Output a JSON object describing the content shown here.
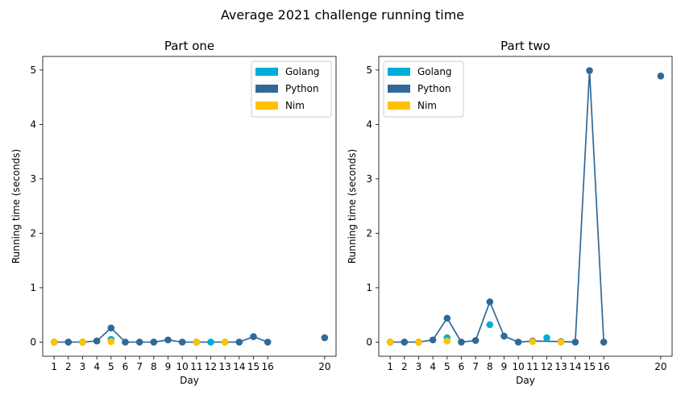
{
  "figure_title": "Average 2021 challenge running time",
  "legend_items": [
    "Golang",
    "Python",
    "Nim"
  ],
  "colors": {
    "Golang": "#00add8",
    "Python": "#306998",
    "Nim": "#ffc200",
    "line": "#306998"
  },
  "chart_data": [
    {
      "type": "line",
      "title": "Part one",
      "xlabel": "Day",
      "ylabel": "Running time (seconds)",
      "xticks": [
        1,
        2,
        3,
        4,
        5,
        6,
        7,
        8,
        9,
        10,
        11,
        12,
        13,
        14,
        15,
        16,
        20
      ],
      "yticks": [
        0,
        1,
        2,
        3,
        4,
        5
      ],
      "xlim": [
        0.2,
        20.8
      ],
      "ylim": [
        -0.26,
        5.25
      ],
      "legend_position": "top-right",
      "series": [
        {
          "name": "Python",
          "style": "line+markers",
          "x": [
            1,
            2,
            3,
            4,
            5,
            6,
            7,
            8,
            9,
            10,
            11,
            13,
            14,
            15,
            16,
            20
          ],
          "y": [
            0.0,
            0.0,
            0.0,
            0.02,
            0.26,
            0.0,
            0.0,
            0.0,
            0.04,
            0.0,
            0.0,
            0.0,
            0.0,
            0.1,
            0.0,
            0.08
          ]
        },
        {
          "name": "Golang",
          "style": "markers",
          "x": [
            1,
            2,
            3,
            5,
            8,
            11,
            12
          ],
          "y": [
            0.0,
            0.0,
            0.0,
            0.05,
            0.0,
            0.0,
            0.0
          ]
        },
        {
          "name": "Nim",
          "style": "markers",
          "x": [
            1,
            3,
            5,
            11,
            13
          ],
          "y": [
            0.0,
            0.0,
            0.01,
            0.0,
            0.0
          ]
        }
      ]
    },
    {
      "type": "line",
      "title": "Part two",
      "xlabel": "Day",
      "ylabel": "Running time (seconds)",
      "xticks": [
        1,
        2,
        3,
        4,
        5,
        6,
        7,
        8,
        9,
        10,
        11,
        12,
        13,
        14,
        15,
        16,
        20
      ],
      "yticks": [
        0,
        1,
        2,
        3,
        4,
        5
      ],
      "xlim": [
        0.2,
        20.8
      ],
      "ylim": [
        -0.26,
        5.25
      ],
      "legend_position": "top-left",
      "series": [
        {
          "name": "Python",
          "style": "line+markers",
          "x": [
            1,
            2,
            3,
            4,
            5,
            6,
            7,
            8,
            9,
            10,
            11,
            13,
            14,
            15,
            16,
            20
          ],
          "y": [
            0.0,
            0.0,
            0.0,
            0.04,
            0.44,
            0.0,
            0.03,
            0.74,
            0.11,
            0.0,
            0.02,
            0.01,
            0.0,
            4.99,
            0.0,
            4.89
          ]
        },
        {
          "name": "Golang",
          "style": "markers",
          "x": [
            1,
            2,
            3,
            5,
            8,
            12
          ],
          "y": [
            0.0,
            0.0,
            0.0,
            0.08,
            0.32,
            0.08
          ]
        },
        {
          "name": "Nim",
          "style": "markers",
          "x": [
            1,
            3,
            5,
            11,
            13
          ],
          "y": [
            0.0,
            0.0,
            0.02,
            0.01,
            0.0
          ]
        }
      ]
    }
  ]
}
